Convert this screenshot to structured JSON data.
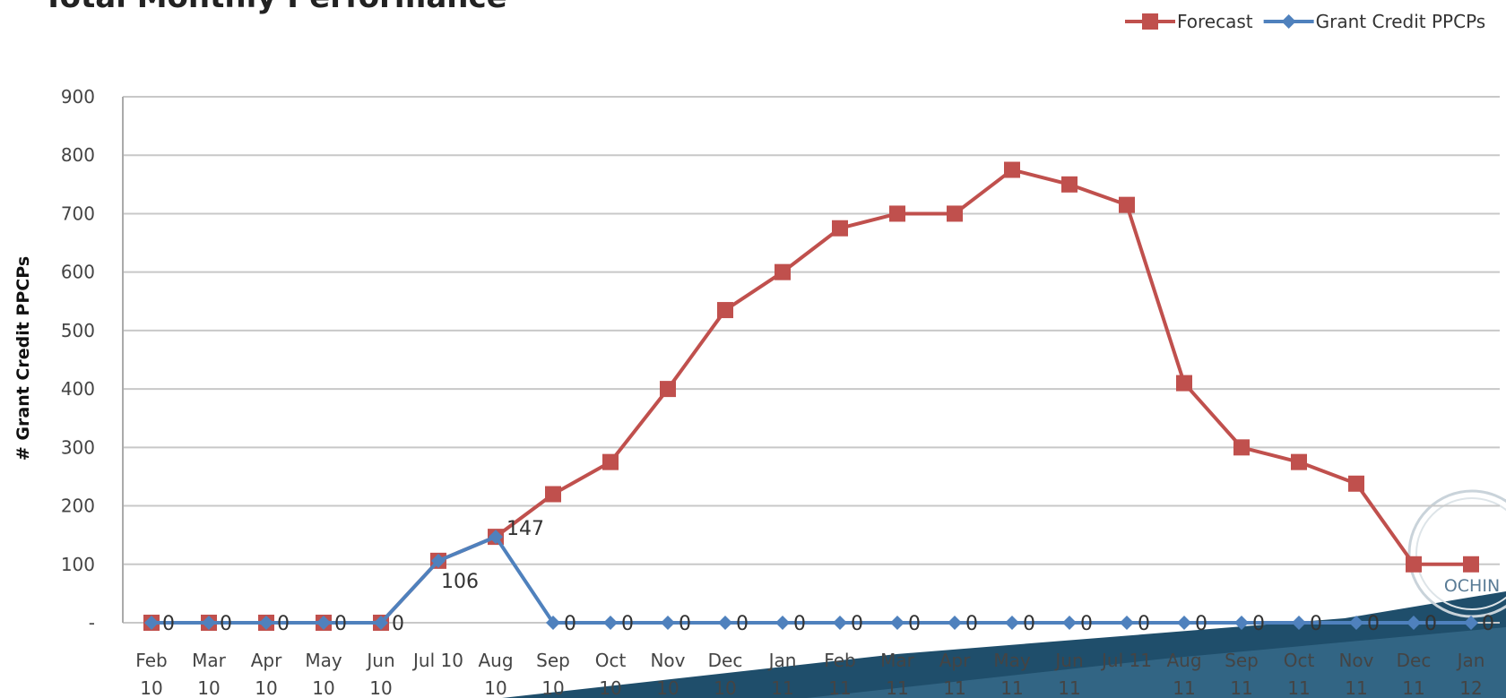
{
  "chart_data": {
    "type": "line",
    "title": "Total Monthly Performance",
    "y_label": "# Grant Credit PPCPs",
    "categories": [
      "Feb 10",
      "Mar 10",
      "Apr 10",
      "May 10",
      "Jun 10",
      "Jul 10",
      "Aug 10",
      "Sep 10",
      "Oct 10",
      "Nov 10",
      "Dec 10",
      "Jan 11",
      "Feb 11",
      "Mar 11",
      "Apr 11",
      "May 11",
      "Jun 11",
      "Jul 11",
      "Aug 11",
      "Sep 11",
      "Oct 11",
      "Nov 11",
      "Dec 11",
      "Jan 12"
    ],
    "series": [
      {
        "name": "Forecast",
        "color": "#c0504d",
        "marker": "square",
        "values": [
          0,
          0,
          0,
          0,
          0,
          106,
          147,
          220,
          275,
          400,
          535,
          600,
          675,
          700,
          700,
          775,
          750,
          715,
          410,
          300,
          275,
          238,
          100,
          100
        ]
      },
      {
        "name": "Grant Credit PPCPs",
        "color": "#4f81bd",
        "marker": "diamond",
        "data_labels": true,
        "values": [
          0,
          0,
          0,
          0,
          0,
          106,
          147,
          0,
          0,
          0,
          0,
          0,
          0,
          0,
          0,
          0,
          0,
          0,
          0,
          0,
          0,
          0,
          0,
          0
        ]
      }
    ],
    "ylim": [
      0,
      900
    ],
    "yticks": [
      {
        "value": 0,
        "label": "-"
      },
      100,
      200,
      300,
      400,
      500,
      600,
      700,
      800,
      900
    ],
    "grid": true,
    "legend": "top-right",
    "logo_text": "OCHIN"
  }
}
